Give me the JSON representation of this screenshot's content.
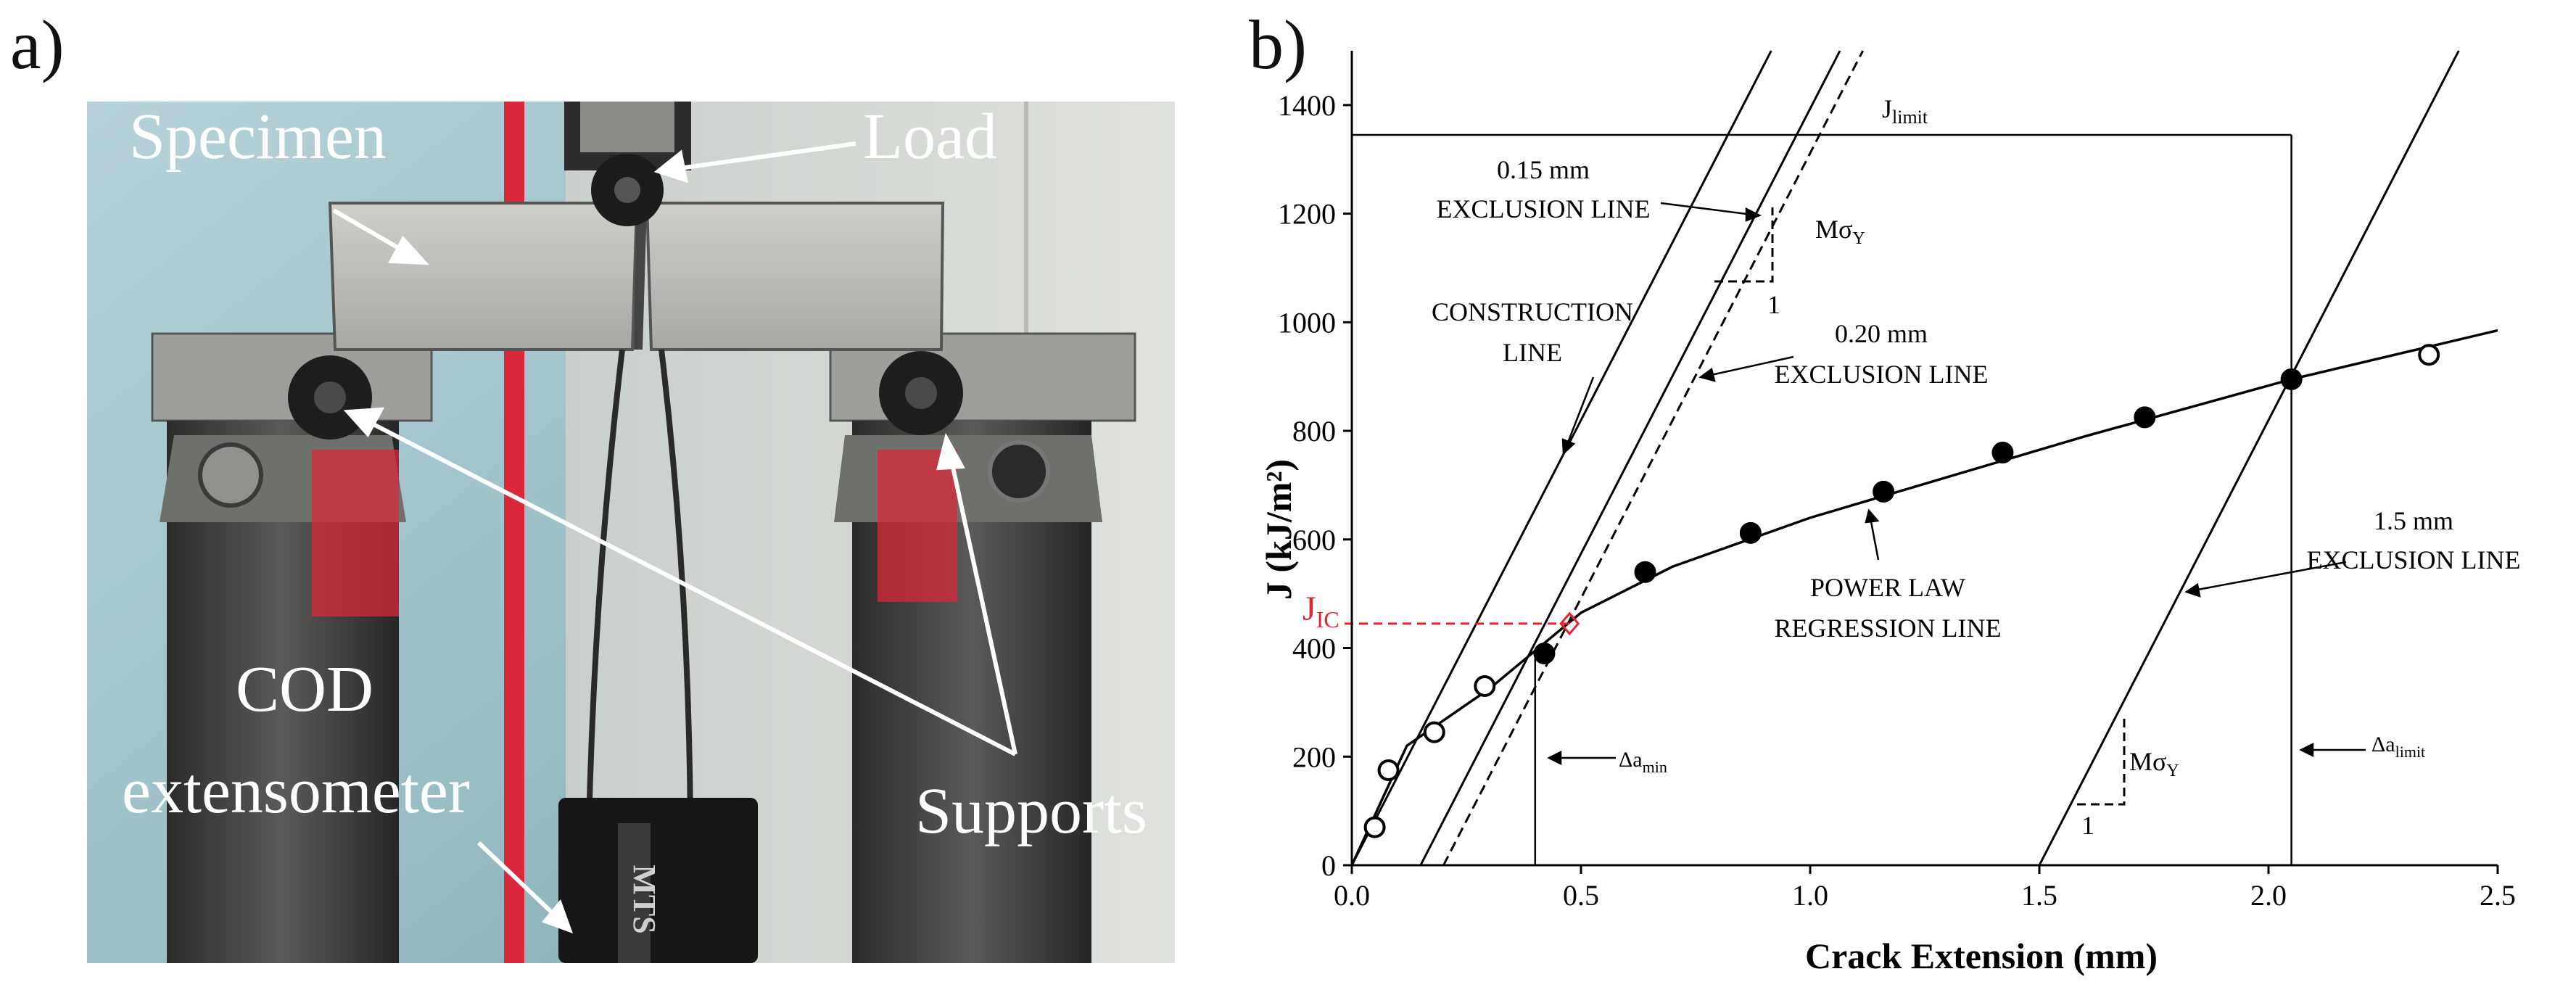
{
  "panels": {
    "a": "a)",
    "b": "b)"
  },
  "photo": {
    "labels": {
      "specimen": "Specimen",
      "load": "Load",
      "cod_line1": "COD",
      "cod_line2": "extensometer",
      "supports": "Supports",
      "gauge_text": "MTS"
    },
    "colors": {
      "sky": "#9fc3cc",
      "metal": "#b9b9b4",
      "fixture": "#3a3a3a",
      "red": "#d8283a",
      "label": "#ffffff"
    }
  },
  "chart_data": {
    "type": "scatter",
    "title": "",
    "xlabel": "Crack Extension (mm)",
    "ylabel": "J (kJ/m²)",
    "xlim": [
      0,
      2.5
    ],
    "ylim": [
      0,
      1500
    ],
    "xticks": [
      0.0,
      0.5,
      1.0,
      1.5,
      2.0,
      2.5
    ],
    "xtick_labels": [
      "0.0",
      "0.5",
      "1.0",
      "1.5",
      "2.0",
      "2.5"
    ],
    "yticks": [
      0,
      200,
      400,
      600,
      800,
      1000,
      1200,
      1400
    ],
    "ytick_labels": [
      "0",
      "200",
      "400",
      "600",
      "800",
      "1000",
      "1200",
      "1400"
    ],
    "grid": false,
    "series": [
      {
        "marker": "open-circle",
        "points": [
          [
            0.05,
            70
          ],
          [
            0.08,
            175
          ],
          [
            0.18,
            245
          ],
          [
            0.29,
            330
          ],
          [
            2.35,
            940
          ]
        ]
      },
      {
        "marker": "filled-circle",
        "points": [
          [
            0.42,
            390
          ],
          [
            0.64,
            540
          ],
          [
            0.87,
            612
          ],
          [
            1.16,
            688
          ],
          [
            1.42,
            760
          ],
          [
            1.73,
            825
          ],
          [
            2.05,
            895
          ]
        ]
      }
    ],
    "fit_curve": [
      [
        0.0,
        0
      ],
      [
        0.12,
        220
      ],
      [
        0.3,
        325
      ],
      [
        0.5,
        465
      ],
      [
        0.7,
        550
      ],
      [
        1.0,
        640
      ],
      [
        1.3,
        715
      ],
      [
        1.6,
        790
      ],
      [
        2.05,
        895
      ],
      [
        2.5,
        985
      ]
    ],
    "lines": {
      "construction": {
        "from": [
          0.0,
          0
        ],
        "to": [
          0.915,
          1500
        ]
      },
      "excl_015": {
        "from": [
          0.15,
          0
        ],
        "to": [
          1.065,
          1500
        ]
      },
      "excl_020": {
        "from": [
          0.2,
          0
        ],
        "to": [
          1.115,
          1500
        ]
      },
      "excl_15": {
        "from": [
          1.5,
          0
        ],
        "to": [
          2.415,
          1500
        ]
      },
      "j_limit": {
        "y": 1345,
        "x_from": 0.0,
        "x_to": 2.05
      },
      "da_min": {
        "x": 0.4,
        "y_from": 0,
        "y_to": 395
      },
      "da_limit": {
        "x": 2.05,
        "y_from": 0,
        "y_to": 1345
      },
      "jic": {
        "x": 0.475,
        "y": 445,
        "color": "#e3262d"
      }
    },
    "annotations": {
      "excl015_l1": "0.15 mm",
      "excl015_l2": "EXCLUSION LINE",
      "construction_l1": "CONSTRUCTION",
      "construction_l2": "LINE",
      "excl020_l1": "0.20 mm",
      "excl020_l2": "EXCLUSION LINE",
      "powerlaw_l1": "POWER LAW",
      "powerlaw_l2": "REGRESSION LINE",
      "excl15_l1": "1.5 mm",
      "excl15_l2": "EXCLUSION LINE",
      "jlimit": "J",
      "jlimit_sub": "limit",
      "damin": "Δa",
      "damin_sub": "min",
      "dalimit": "Δa",
      "dalimit_sub": "limit",
      "msigma": "Mσ",
      "msigma_sub": "Y",
      "one": "1",
      "jic": "J",
      "jic_sub": "IC"
    }
  }
}
